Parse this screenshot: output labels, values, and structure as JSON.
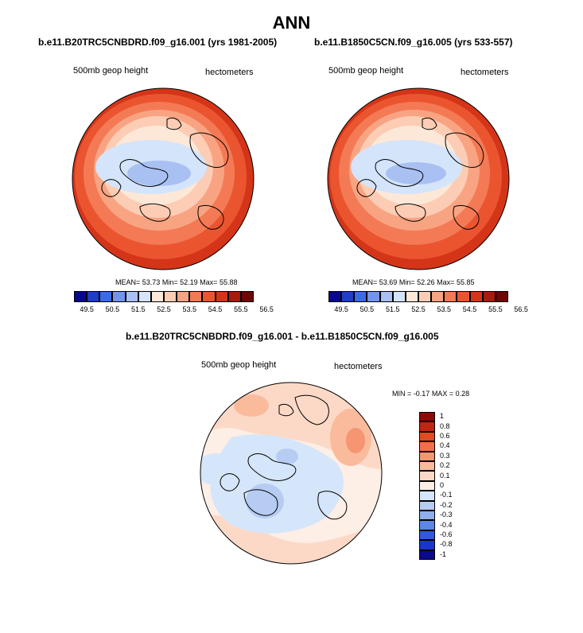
{
  "title": "ANN",
  "panels": [
    {
      "case": "b.e11.B20TRC5CNBDRD.f09_g16.001 (yrs 1981-2005)",
      "field": "500mb geop height",
      "units": "hectometers",
      "stats": {
        "mean_label": "MEAN=",
        "mean": "53.73",
        "min_label": "Min=",
        "min": "52.19",
        "max_label": "Max=",
        "max": "55.88"
      }
    },
    {
      "case": "b.e11.B1850C5CN.f09_g16.005 (yrs 533-557)",
      "field": "500mb geop height",
      "units": "hectometers",
      "stats": {
        "mean_label": "MEAN=",
        "mean": "53.69",
        "min_label": "Min=",
        "min": "52.26",
        "max_label": "Max=",
        "max": "55.85"
      }
    }
  ],
  "colorbar": {
    "ticks": [
      "49.5",
      "50.5",
      "51.5",
      "52.5",
      "53.5",
      "54.5",
      "55.5",
      "56.5"
    ],
    "colors": [
      "#08088f",
      "#1e3ec8",
      "#3b6ae6",
      "#7394ec",
      "#a8c0f2",
      "#d4e4fa",
      "#fde8d8",
      "#fccdb4",
      "#f8a482",
      "#f47a55",
      "#ea5530",
      "#d43518",
      "#a81a0c",
      "#6e0606"
    ]
  },
  "diff": {
    "title": "b.e11.B20TRC5CNBDRD.f09_g16.001 - b.e11.B1850C5CN.f09_g16.005",
    "field": "500mb geop height",
    "units": "hectometers",
    "min_label": "MIN =",
    "min": "-0.17",
    "max_label": "MAX =",
    "max": "0.28",
    "levels": [
      "1",
      "0.8",
      "0.6",
      "0.4",
      "0.3",
      "0.2",
      "0.1",
      "0",
      "-0.1",
      "-0.2",
      "-0.3",
      "-0.4",
      "-0.6",
      "-0.8",
      "-1"
    ],
    "colors": [
      "#8b0a06",
      "#c0260e",
      "#e24a22",
      "#f07048",
      "#f59572",
      "#f9bb9c",
      "#fcd9c6",
      "#fdeee6",
      "#d6e6fa",
      "#b6ccf2",
      "#8eaeec",
      "#5d86e6",
      "#3059e0",
      "#1a36c8",
      "#0a0a8a"
    ]
  }
}
